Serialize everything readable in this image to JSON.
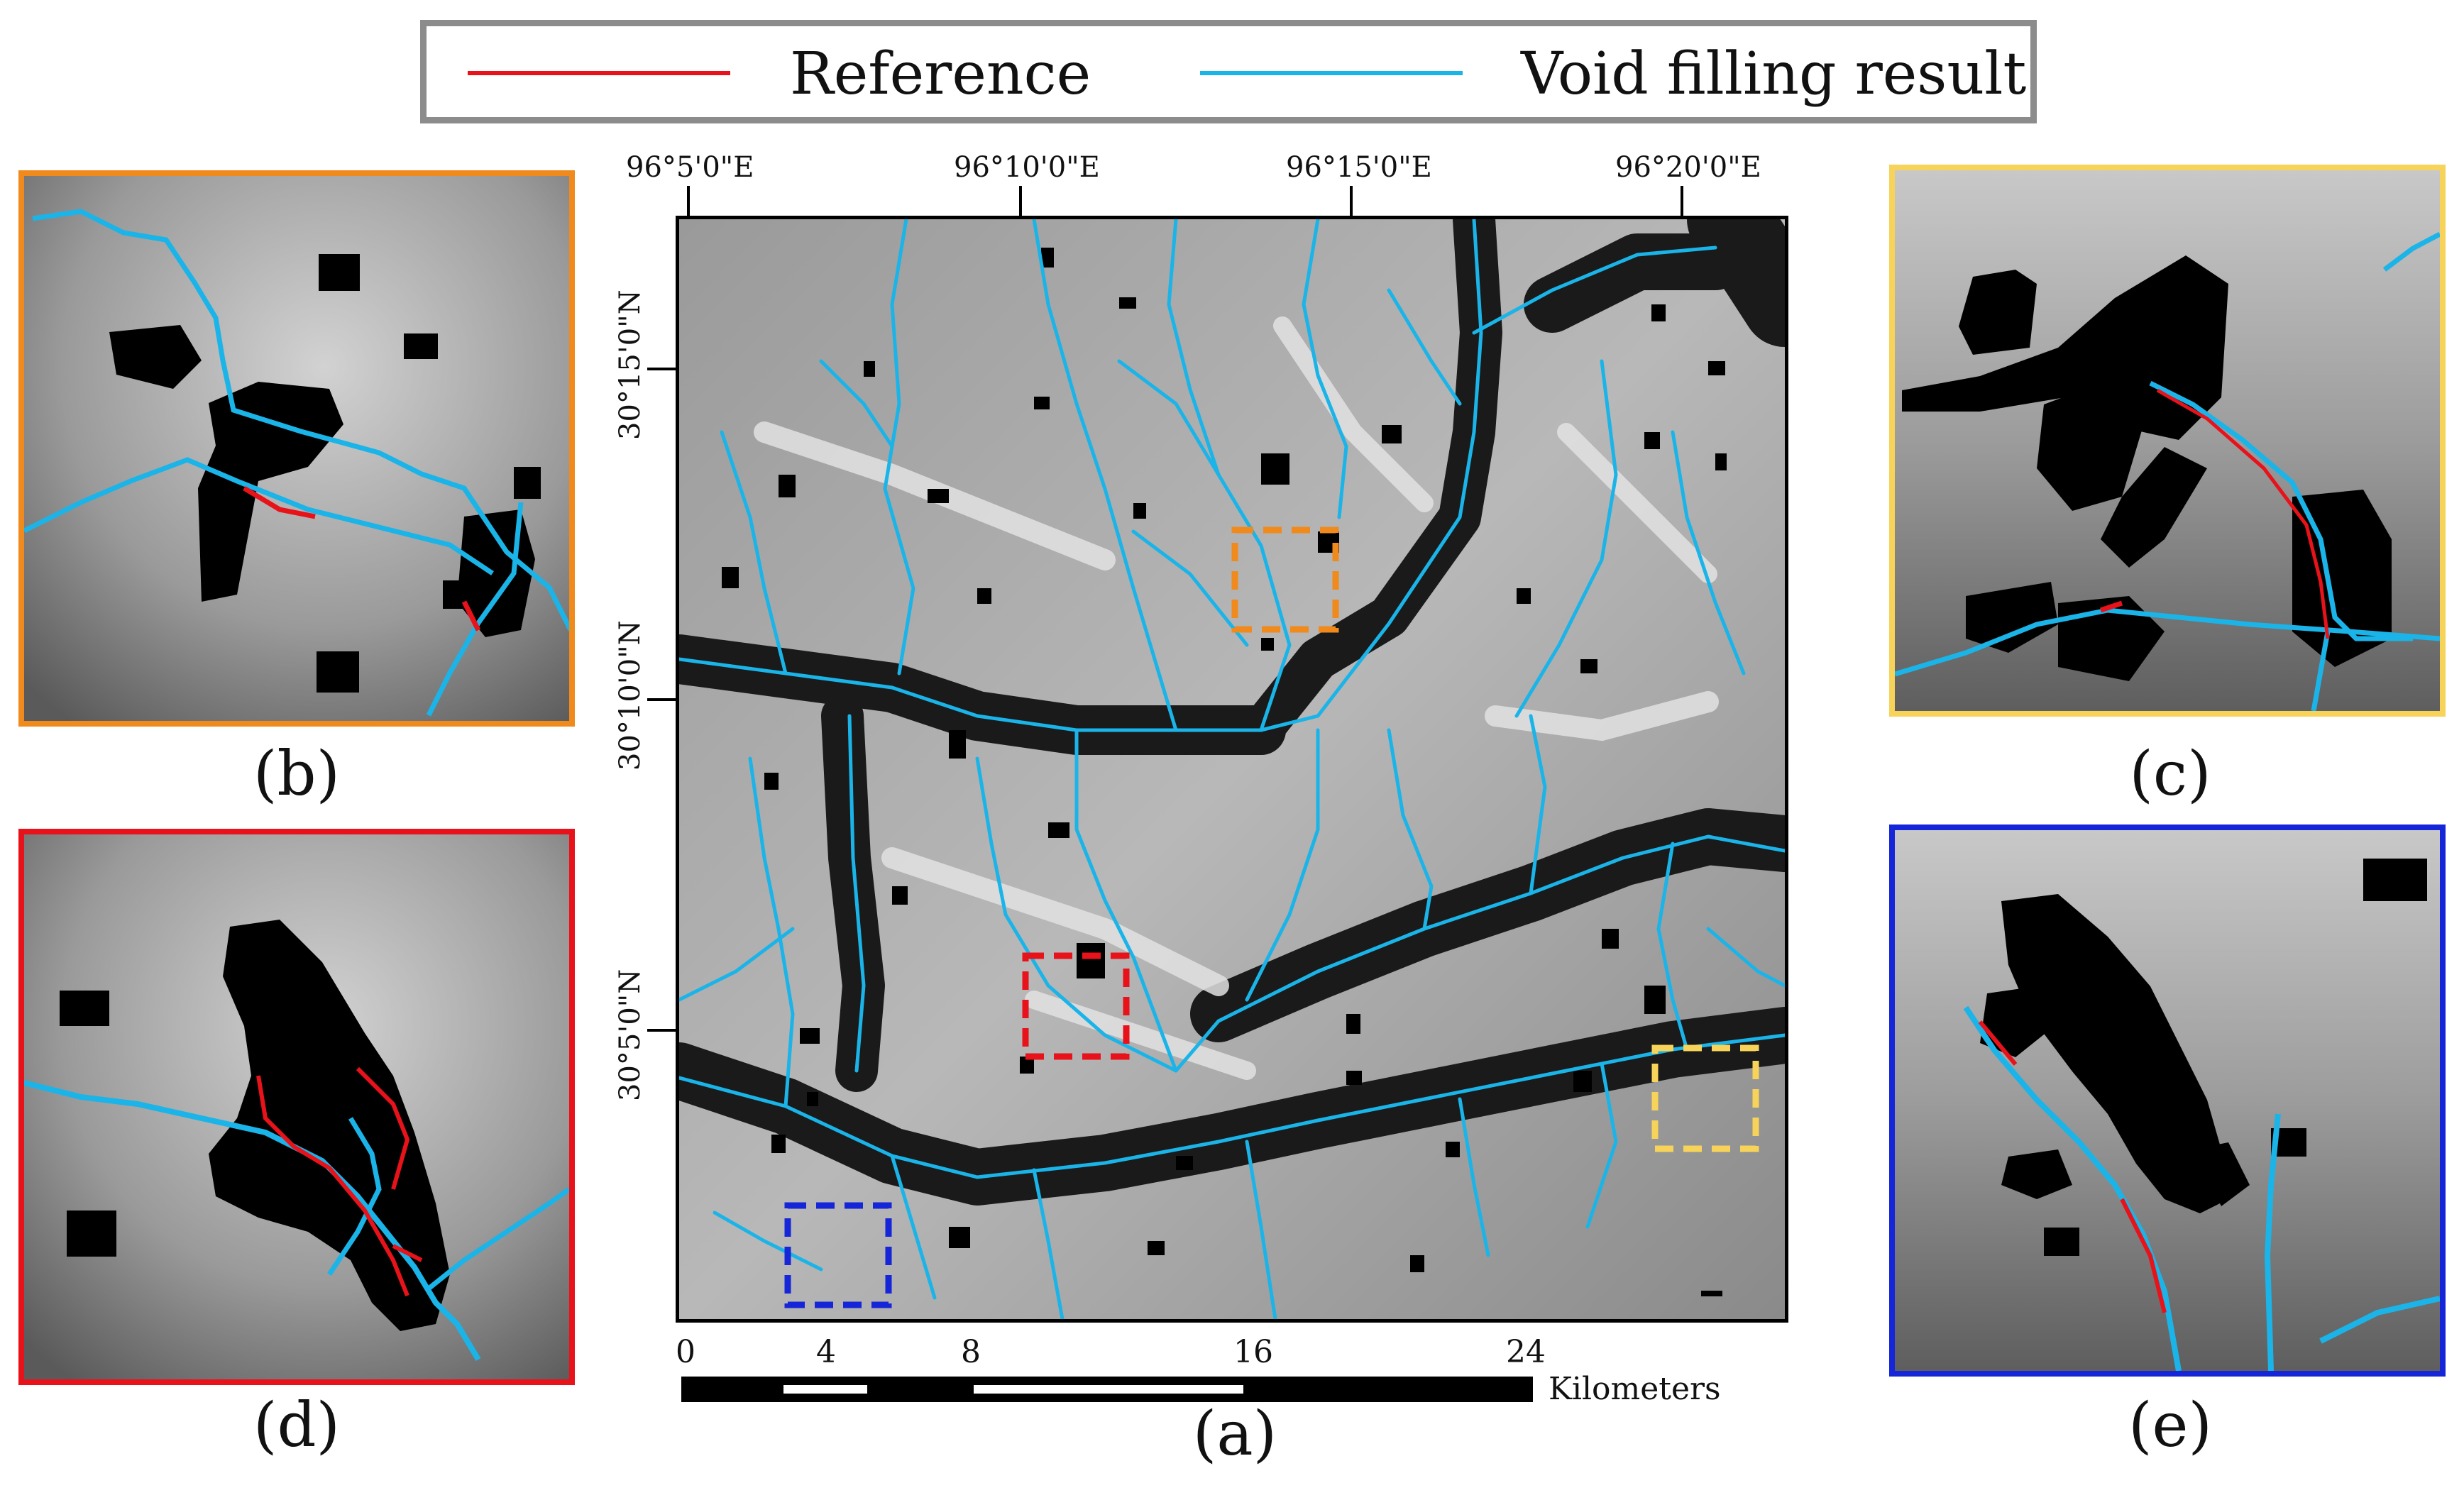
{
  "legend": {
    "reference_label": "Reference",
    "reference_color": "#e8121a",
    "result_label": "Void filling result",
    "result_color": "#1bb4e8"
  },
  "main_map": {
    "caption": "(a)",
    "lon_ticks": [
      "96°5'0\"E",
      "96°10'0\"E",
      "96°15'0\"E",
      "96°20'0\"E"
    ],
    "lat_ticks": [
      "30°15'0\"N",
      "30°10'0\"N",
      "30°5'0\"N"
    ],
    "scale": {
      "ticks": [
        "0",
        "4",
        "8",
        "16",
        "24"
      ],
      "unit": "Kilometers"
    },
    "boxes": [
      {
        "name": "orange-box",
        "color": "#f08a1c"
      },
      {
        "name": "red-box",
        "color": "#e8121a"
      },
      {
        "name": "yellow-box",
        "color": "#f7d35a"
      },
      {
        "name": "blue-box",
        "color": "#1525d8"
      }
    ]
  },
  "panels": [
    {
      "id": "b",
      "caption": "(b)",
      "border_color": "#f08a1c"
    },
    {
      "id": "c",
      "caption": "(c)",
      "border_color": "#f7d35a"
    },
    {
      "id": "d",
      "caption": "(d)",
      "border_color": "#e8121a"
    },
    {
      "id": "e",
      "caption": "(e)",
      "border_color": "#1525d8"
    }
  ]
}
